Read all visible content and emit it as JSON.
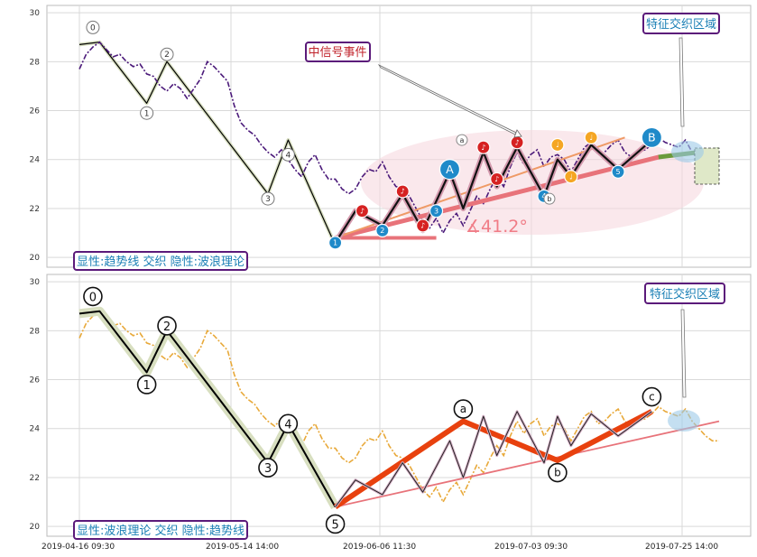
{
  "colors": {
    "grid": "#d9d9d9",
    "frame": "#bbbbbb",
    "price_top": "#4b1a7a",
    "price_bottom": "#e8a93a",
    "trend_wave_fill": "#d8dfc0",
    "wave_line": "#000000",
    "pink_trend": "#e8737a",
    "orange_red_wave": "#e8410e",
    "ellipse": "#f6d5dc",
    "callout_border": "#5b1a7a",
    "callout_text": "#1a7fb5",
    "event_text": "#c0222a",
    "badge_blue": "#1f8ac9",
    "badge_red": "#d62222",
    "badge_orange": "#f5a623"
  },
  "chart_data": [
    {
      "type": "line",
      "panel": "top",
      "ylim": [
        19.6,
        30.3
      ],
      "yticks": [
        "20",
        "22",
        "24",
        "26",
        "28",
        "30"
      ],
      "grid": true,
      "xlim": [
        0,
        100
      ],
      "price": [
        [
          0,
          27.7
        ],
        [
          1,
          28.3
        ],
        [
          2,
          28.6
        ],
        [
          3,
          28.8
        ],
        [
          4,
          28.5
        ],
        [
          5,
          28.2
        ],
        [
          6,
          28.3
        ],
        [
          7,
          28.0
        ],
        [
          8,
          27.8
        ],
        [
          9,
          27.9
        ],
        [
          10,
          27.5
        ],
        [
          11,
          27.4
        ],
        [
          12,
          27.0
        ],
        [
          13,
          26.8
        ],
        [
          14,
          27.1
        ],
        [
          15,
          26.9
        ],
        [
          16,
          26.5
        ],
        [
          17,
          26.9
        ],
        [
          18,
          27.3
        ],
        [
          19,
          28.0
        ],
        [
          20,
          27.8
        ],
        [
          21,
          27.5
        ],
        [
          22,
          27.2
        ],
        [
          23,
          26.2
        ],
        [
          24,
          25.5
        ],
        [
          25,
          25.2
        ],
        [
          26,
          25.0
        ],
        [
          27,
          24.6
        ],
        [
          28,
          24.3
        ],
        [
          29,
          24.1
        ],
        [
          30,
          24.4
        ],
        [
          31,
          24.0
        ],
        [
          32,
          23.6
        ],
        [
          33,
          23.3
        ],
        [
          34,
          23.9
        ],
        [
          35,
          24.2
        ],
        [
          36,
          23.6
        ],
        [
          37,
          23.2
        ],
        [
          38,
          23.2
        ],
        [
          39,
          22.8
        ],
        [
          40,
          22.6
        ],
        [
          41,
          22.8
        ],
        [
          42,
          23.3
        ],
        [
          43,
          23.6
        ],
        [
          44,
          23.5
        ],
        [
          45,
          23.9
        ],
        [
          46,
          23.3
        ],
        [
          47,
          22.9
        ],
        [
          48,
          22.8
        ],
        [
          49,
          22.5
        ],
        [
          50,
          22.0
        ],
        [
          51,
          21.5
        ],
        [
          52,
          21.2
        ],
        [
          53,
          21.6
        ],
        [
          54,
          21.0
        ],
        [
          55,
          21.5
        ],
        [
          56,
          21.8
        ],
        [
          57,
          21.3
        ],
        [
          58,
          21.9
        ],
        [
          59,
          22.5
        ],
        [
          60,
          22.2
        ],
        [
          61,
          22.8
        ],
        [
          62,
          23.3
        ],
        [
          63,
          22.9
        ],
        [
          64,
          23.7
        ],
        [
          65,
          24.3
        ],
        [
          66,
          23.8
        ],
        [
          67,
          24.2
        ],
        [
          68,
          24.4
        ],
        [
          69,
          23.7
        ],
        [
          70,
          24.1
        ],
        [
          71,
          24.2
        ],
        [
          72,
          24.0
        ],
        [
          73,
          23.5
        ],
        [
          74,
          24.0
        ],
        [
          75,
          24.5
        ],
        [
          76,
          24.7
        ],
        [
          77,
          24.2
        ],
        [
          78,
          24.3
        ],
        [
          79,
          24.6
        ],
        [
          80,
          24.8
        ],
        [
          81,
          24.3
        ],
        [
          82,
          24.1
        ],
        [
          83,
          24.3
        ],
        [
          84,
          24.4
        ],
        [
          85,
          24.6
        ],
        [
          86,
          24.9
        ],
        [
          87,
          24.7
        ],
        [
          88,
          24.6
        ],
        [
          89,
          24.5
        ],
        [
          90,
          24.8
        ],
        [
          91,
          24.3
        ],
        [
          92,
          24.0
        ],
        [
          93,
          23.7
        ],
        [
          94,
          23.5
        ],
        [
          95,
          23.5
        ]
      ],
      "wave_points": [
        [
          0,
          28.7
        ],
        [
          3,
          28.8
        ],
        [
          10,
          26.3
        ],
        [
          13,
          28.0
        ],
        [
          28,
          22.6
        ],
        [
          31,
          24.8
        ],
        [
          38,
          20.5
        ]
      ],
      "wave_labels": [
        "0",
        "1",
        "2",
        "3",
        "4"
      ],
      "trendline": [
        [
          38,
          20.8
        ],
        [
          86,
          24.1
        ]
      ],
      "trendline_upper": [
        [
          38,
          20.8
        ],
        [
          81,
          24.9
        ]
      ],
      "green_extension": [
        [
          86,
          24.1
        ],
        [
          95,
          24.4
        ]
      ],
      "angle_label": "∡41.2°",
      "event_label": "中信号事件",
      "zone_label": "特征交织区域",
      "footer_label": "显性:趋势线 交织 隐性:波浪理论",
      "big_badges": [
        "A",
        "B"
      ],
      "small_badge_numbers": [
        "1",
        "2",
        "3",
        "4",
        "5"
      ],
      "badge_marks": [
        "a",
        "b"
      ]
    },
    {
      "type": "line",
      "panel": "bottom",
      "ylim": [
        19.6,
        30.3
      ],
      "yticks": [
        "20",
        "22",
        "24",
        "26",
        "28",
        "30"
      ],
      "grid": true,
      "xlim": [
        0,
        100
      ],
      "x_tick_labels": [
        "2019-04-16 09:30",
        "2019-05-14 14:00",
        "2019-06-06 11:30",
        "2019-07-03 09:30",
        "2019-07-25 14:00"
      ],
      "wave_points": [
        [
          0,
          28.7
        ],
        [
          3,
          28.8
        ],
        [
          10,
          26.3
        ],
        [
          13,
          28.0
        ],
        [
          28,
          22.6
        ],
        [
          31,
          24.2
        ],
        [
          38,
          20.8
        ]
      ],
      "wave_labels": [
        "0",
        "1",
        "2",
        "3",
        "4",
        "5"
      ],
      "abc_points": [
        [
          38,
          20.8
        ],
        [
          57,
          24.3
        ],
        [
          71,
          22.7
        ],
        [
          85,
          24.7
        ]
      ],
      "abc_labels": [
        "a",
        "b",
        "c"
      ],
      "trendline": [
        [
          38,
          20.8
        ],
        [
          95,
          24.3
        ]
      ],
      "zone_label": "特征交织区域",
      "footer_label": "显性:波浪理论 交织 隐性:趋势线"
    }
  ]
}
